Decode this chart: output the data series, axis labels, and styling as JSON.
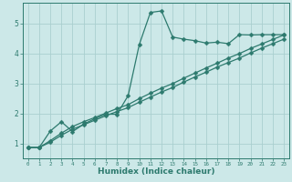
{
  "xlabel": "Humidex (Indice chaleur)",
  "background_color": "#cce8e8",
  "grid_color": "#aacfcf",
  "line_color": "#2d7a6e",
  "x_values": [
    0,
    1,
    2,
    3,
    4,
    5,
    6,
    7,
    8,
    9,
    10,
    11,
    12,
    13,
    14,
    15,
    16,
    17,
    18,
    19,
    20,
    21,
    22,
    23
  ],
  "series1": [
    0.87,
    0.87,
    1.42,
    1.73,
    1.4,
    1.65,
    1.83,
    1.98,
    1.98,
    2.6,
    4.3,
    5.37,
    5.42,
    4.55,
    4.48,
    4.43,
    4.35,
    4.38,
    4.33,
    4.63,
    4.62,
    4.63,
    4.63,
    4.63
  ],
  "series2": [
    0.87,
    0.87,
    1.1,
    1.35,
    1.57,
    1.73,
    1.87,
    2.02,
    2.17,
    2.3,
    2.5,
    2.68,
    2.85,
    3.0,
    3.18,
    3.35,
    3.52,
    3.68,
    3.85,
    4.0,
    4.17,
    4.32,
    4.47,
    4.62
  ],
  "series3": [
    0.87,
    0.87,
    1.05,
    1.28,
    1.48,
    1.63,
    1.78,
    1.93,
    2.07,
    2.2,
    2.38,
    2.55,
    2.72,
    2.87,
    3.05,
    3.22,
    3.38,
    3.55,
    3.7,
    3.85,
    4.02,
    4.18,
    4.33,
    4.48
  ],
  "ylim": [
    0.5,
    5.7
  ],
  "yticks": [
    1,
    2,
    3,
    4,
    5
  ],
  "xlim": [
    -0.5,
    23.5
  ],
  "markersize": 2.5,
  "linewidth": 0.9
}
